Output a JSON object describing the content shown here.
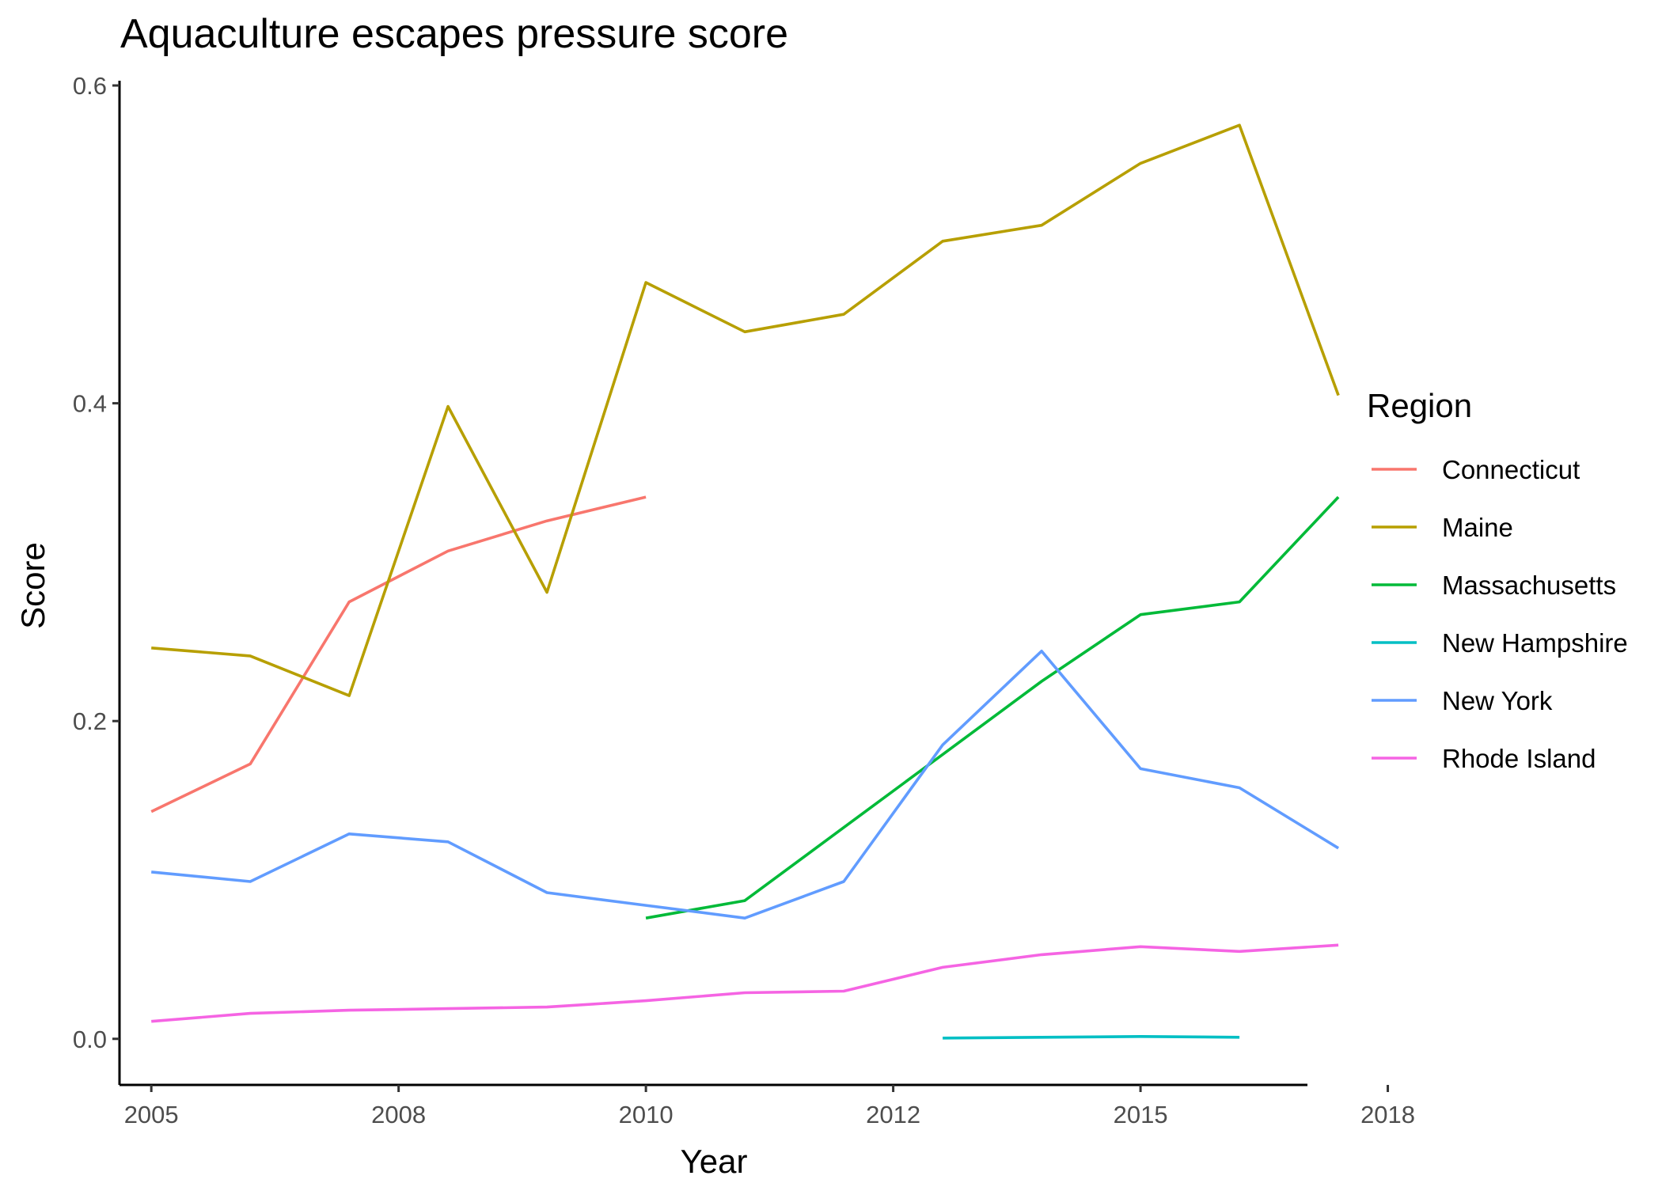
{
  "chart_data": {
    "type": "line",
    "title": "Aquaculture escapes pressure score",
    "xlabel": "Year",
    "ylabel": "Score",
    "xlim": [
      2004.64,
      2018.09
    ],
    "ylim": [
      -0.029,
      0.603
    ],
    "xticks": [
      {
        "value": 2005,
        "label": "2005"
      },
      {
        "value": 2007.8,
        "label": "2008"
      },
      {
        "value": 2010.6,
        "label": "2010"
      },
      {
        "value": 2013.4,
        "label": "2012"
      },
      {
        "value": 2016.2,
        "label": "2015"
      },
      {
        "value": 2019.0,
        "label": "2018"
      }
    ],
    "yticks": [
      {
        "value": 0.0,
        "label": "0.0"
      },
      {
        "value": 0.2,
        "label": "0.2"
      },
      {
        "value": 0.4,
        "label": "0.4"
      },
      {
        "value": 0.6,
        "label": "0.6"
      }
    ],
    "grid": false,
    "legend": {
      "title": "Region",
      "position": "right"
    },
    "series": [
      {
        "name": "Connecticut",
        "color": "#F8766D",
        "x": [
          2005,
          2006.12,
          2007.24,
          2008.36,
          2009.48,
          2010.6
        ],
        "y": [
          0.143,
          0.173,
          0.275,
          0.307,
          0.326,
          0.341
        ]
      },
      {
        "name": "Maine",
        "color": "#B79F00",
        "x": [
          2005,
          2006.12,
          2007.24,
          2008.36,
          2009.48,
          2010.6,
          2011.72,
          2012.84,
          2013.96,
          2015.08,
          2016.2,
          2017.32,
          2018.44
        ],
        "y": [
          0.246,
          0.241,
          0.216,
          0.398,
          0.281,
          0.476,
          0.445,
          0.456,
          0.502,
          0.512,
          0.551,
          0.575,
          0.405
        ]
      },
      {
        "name": "Massachusetts",
        "color": "#00BA38",
        "x": [
          2010.6,
          2011.72,
          2012.84,
          2013.96,
          2015.08,
          2016.2,
          2017.32,
          2018.44
        ],
        "y": [
          0.076,
          0.087,
          0.133,
          0.179,
          0.225,
          0.267,
          0.275,
          0.341
        ]
      },
      {
        "name": "New Hampshire",
        "color": "#00BFC4",
        "x": [
          2013.96,
          2015.08,
          2016.2,
          2017.32
        ],
        "y": [
          0.0005,
          0.001,
          0.0015,
          0.001
        ]
      },
      {
        "name": "New York",
        "color": "#619CFF",
        "x": [
          2005,
          2006.12,
          2007.24,
          2008.36,
          2009.48,
          2010.6,
          2011.72,
          2012.84,
          2013.96,
          2015.08,
          2016.2,
          2017.32,
          2018.44
        ],
        "y": [
          0.105,
          0.099,
          0.129,
          0.124,
          0.092,
          0.084,
          0.076,
          0.099,
          0.185,
          0.244,
          0.17,
          0.158,
          0.12
        ]
      },
      {
        "name": "Rhode Island",
        "color": "#F564E3",
        "x": [
          2005,
          2006.12,
          2007.24,
          2008.36,
          2009.48,
          2010.6,
          2011.72,
          2012.84,
          2013.96,
          2015.08,
          2016.2,
          2017.32,
          2018.44
        ],
        "y": [
          0.011,
          0.016,
          0.018,
          0.019,
          0.02,
          0.024,
          0.029,
          0.03,
          0.045,
          0.053,
          0.058,
          0.055,
          0.059
        ]
      }
    ]
  }
}
